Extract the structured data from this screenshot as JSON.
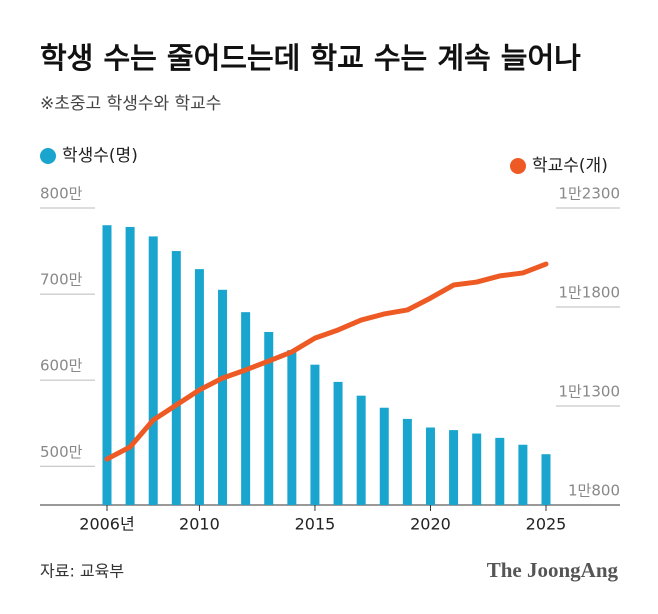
{
  "chart_data": {
    "type": "bar-line",
    "title": "학생 수는 줄어드는데 학교 수는 계속 늘어나",
    "subtitle": "※초중고 학생수와 학교수",
    "source": "자료: 교육부",
    "logo": "The JoongAng",
    "categories": [
      "2006년",
      null,
      null,
      null,
      "2010",
      null,
      null,
      null,
      null,
      "2015",
      null,
      null,
      null,
      null,
      "2020",
      null,
      null,
      null,
      null,
      "2025"
    ],
    "series": [
      {
        "name": "학생수(명)",
        "type": "bar",
        "axis": "y",
        "color": "#1aa5cf",
        "values": [
          780,
          778,
          767,
          750,
          729,
          705,
          679,
          656,
          635,
          618,
          598,
          582,
          568,
          555,
          545,
          542,
          538,
          533,
          525,
          514
        ]
      },
      {
        "name": "학교수(개)",
        "type": "line",
        "axis": "y2",
        "color": "#ee5a24",
        "values": [
          11032,
          11093,
          11229,
          11305,
          11381,
          11441,
          11482,
          11527,
          11573,
          11643,
          11684,
          11734,
          11765,
          11785,
          11845,
          11911,
          11926,
          11957,
          11972,
          12017
        ]
      }
    ],
    "ylim": [
      455,
      800
    ],
    "yticks": [
      {
        "value": 800,
        "label": "800만"
      },
      {
        "value": 700,
        "label": "700만"
      },
      {
        "value": 600,
        "label": "600만"
      },
      {
        "value": 500,
        "label": "500만"
      }
    ],
    "y2lim": [
      10800,
      12300
    ],
    "y2ticks": [
      {
        "value": 12300,
        "label": "1만2300"
      },
      {
        "value": 11800,
        "label": "1만1800"
      },
      {
        "value": 11300,
        "label": "1만1300"
      },
      {
        "value": 10800,
        "label": "1만800"
      }
    ]
  }
}
